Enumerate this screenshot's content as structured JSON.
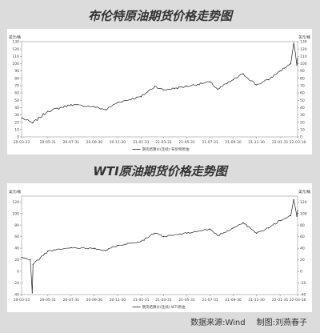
{
  "chart_data": [
    {
      "type": "line",
      "title": "布伦特原油期货价格走势图",
      "ylabel": "美元/桶",
      "ylim": [
        0,
        130
      ],
      "yticks": [
        0,
        10,
        20,
        30,
        40,
        50,
        60,
        70,
        80,
        90,
        100,
        110,
        120,
        130
      ],
      "xticks": [
        "20-03-23",
        "20-05-31",
        "20-07-31",
        "20-09-30",
        "20-11-30",
        "21-01-31",
        "21-03-31",
        "21-05-31",
        "21-07-31",
        "21-09-30",
        "21-11-30",
        "22-01-31",
        "22-03-18"
      ],
      "series": [
        {
          "name": "期货结算价(连续):布伦特原油",
          "x": [
            "20-03-23",
            "20-04-21",
            "20-05-31",
            "20-07-31",
            "20-09-30",
            "20-10-30",
            "20-11-30",
            "21-01-31",
            "21-03-08",
            "21-03-31",
            "21-05-31",
            "21-07-31",
            "21-08-20",
            "21-09-30",
            "21-10-26",
            "21-11-30",
            "21-12-31",
            "22-01-31",
            "22-02-28",
            "22-03-08",
            "22-03-16",
            "22-03-18"
          ],
          "values": [
            26,
            19,
            35,
            44,
            41,
            37,
            47,
            55,
            69,
            64,
            69,
            75,
            65,
            78,
            86,
            71,
            78,
            90,
            100,
            128,
            98,
            107
          ]
        }
      ]
    },
    {
      "type": "line",
      "title": "WTI原油期货价格走势图",
      "ylabel": "美元/桶",
      "ylim": [
        -40,
        130
      ],
      "yticks": [
        -40,
        -20,
        0,
        20,
        40,
        60,
        80,
        100,
        120
      ],
      "xticks": [
        "20-03-23",
        "20-05-31",
        "20-07-31",
        "20-09-30",
        "20-11-30",
        "21-01-31",
        "21-03-31",
        "21-05-31",
        "21-07-31",
        "21-09-30",
        "21-11-30",
        "22-01-31",
        "22-03-18"
      ],
      "series": [
        {
          "name": "期货结算价(连续):WTI原油",
          "x": [
            "20-03-23",
            "20-04-15",
            "20-04-20",
            "20-04-22",
            "20-05-31",
            "20-07-31",
            "20-09-30",
            "20-10-30",
            "20-11-30",
            "21-01-31",
            "21-03-08",
            "21-03-31",
            "21-05-31",
            "21-07-31",
            "21-08-20",
            "21-09-30",
            "21-10-26",
            "21-11-30",
            "21-12-31",
            "22-01-31",
            "22-02-28",
            "22-03-08",
            "22-03-16",
            "22-03-18"
          ],
          "values": [
            24,
            20,
            -37,
            12,
            35,
            41,
            40,
            36,
            45,
            52,
            66,
            60,
            66,
            73,
            62,
            75,
            84,
            66,
            75,
            88,
            96,
            124,
            95,
            105
          ]
        }
      ]
    }
  ],
  "footer": {
    "source": "数据来源:Wind",
    "author": "制图:刘燕春子"
  }
}
